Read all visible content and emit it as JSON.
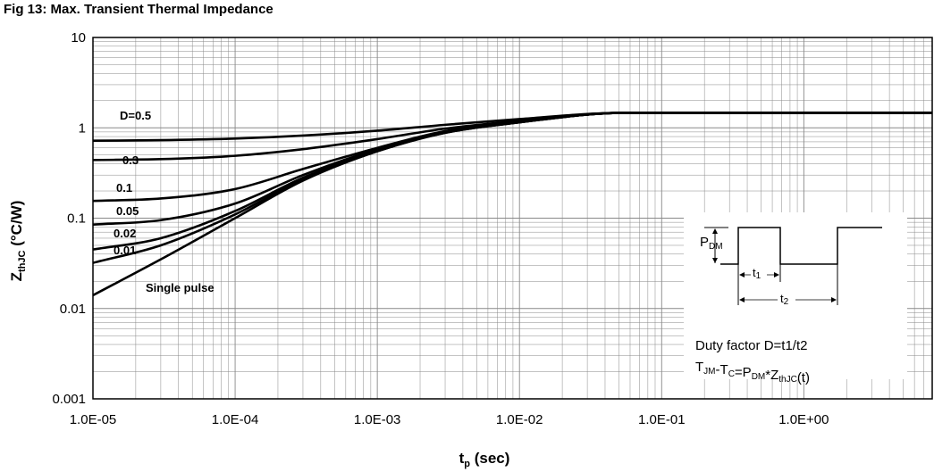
{
  "chart_data": {
    "type": "line",
    "title": "Fig 13: Max. Transient Thermal Impedance",
    "xlabel": {
      "main": "t",
      "sub": "p",
      "rest": " (sec)"
    },
    "ylabel": {
      "main": "Z",
      "sub": "thJC",
      "rest": " (°C/W)"
    },
    "x_scale": "log",
    "y_scale": "log",
    "xlim": [
      1e-05,
      8
    ],
    "ylim": [
      0.001,
      10
    ],
    "x_tick_values": [
      1e-05,
      0.0001,
      0.001,
      0.01,
      0.1,
      1
    ],
    "x_tick_labels": [
      "1.0E-05",
      "1.0E-04",
      "1.0E-03",
      "1.0E-02",
      "1.0E-01",
      "1.0E+00"
    ],
    "y_tick_values": [
      0.001,
      0.01,
      0.1,
      1,
      10
    ],
    "y_tick_labels": [
      "0.001",
      "0.01",
      "0.1",
      "1",
      "10"
    ],
    "grid": true,
    "series": [
      {
        "name": "D=0.5",
        "x": [
          1e-05,
          3e-05,
          0.0001,
          0.0003,
          0.001,
          0.003,
          0.01,
          0.03,
          0.05,
          0.1,
          1,
          8
        ],
        "y": [
          0.72,
          0.73,
          0.76,
          0.82,
          0.93,
          1.08,
          1.25,
          1.42,
          1.46,
          1.46,
          1.46,
          1.46
        ]
      },
      {
        "name": "0.3",
        "x": [
          1e-05,
          3e-05,
          0.0001,
          0.0003,
          0.001,
          0.003,
          0.01,
          0.03,
          0.05,
          0.1,
          1,
          8
        ],
        "y": [
          0.44,
          0.45,
          0.49,
          0.58,
          0.75,
          0.98,
          1.2,
          1.41,
          1.46,
          1.46,
          1.46,
          1.46
        ]
      },
      {
        "name": "0.1",
        "x": [
          1e-05,
          3e-05,
          0.0001,
          0.0003,
          0.001,
          0.003,
          0.01,
          0.03,
          0.05,
          0.1,
          1,
          8
        ],
        "y": [
          0.155,
          0.165,
          0.21,
          0.35,
          0.6,
          0.92,
          1.17,
          1.4,
          1.46,
          1.46,
          1.46,
          1.46
        ]
      },
      {
        "name": "0.05",
        "x": [
          1e-05,
          3e-05,
          0.0001,
          0.0003,
          0.001,
          0.003,
          0.01,
          0.03,
          0.05,
          0.1,
          1,
          8
        ],
        "y": [
          0.085,
          0.095,
          0.145,
          0.3,
          0.58,
          0.9,
          1.16,
          1.4,
          1.46,
          1.46,
          1.46,
          1.46
        ]
      },
      {
        "name": "0.02",
        "x": [
          1e-05,
          3e-05,
          0.0001,
          0.0003,
          0.001,
          0.003,
          0.01,
          0.03,
          0.05,
          0.1,
          1,
          8
        ],
        "y": [
          0.045,
          0.06,
          0.12,
          0.28,
          0.56,
          0.89,
          1.15,
          1.4,
          1.46,
          1.46,
          1.46,
          1.46
        ]
      },
      {
        "name": "0.01",
        "x": [
          1e-05,
          3e-05,
          0.0001,
          0.0003,
          0.001,
          0.003,
          0.01,
          0.03,
          0.05,
          0.1,
          1,
          8
        ],
        "y": [
          0.032,
          0.05,
          0.11,
          0.27,
          0.55,
          0.88,
          1.15,
          1.4,
          1.46,
          1.46,
          1.46,
          1.46
        ]
      },
      {
        "name": "Single pulse",
        "x": [
          1e-05,
          3e-05,
          0.0001,
          0.0003,
          0.001,
          0.003,
          0.01,
          0.03,
          0.05,
          0.1,
          1,
          8
        ],
        "y": [
          0.014,
          0.035,
          0.1,
          0.26,
          0.55,
          0.88,
          1.15,
          1.4,
          1.46,
          1.46,
          1.46,
          1.46
        ]
      }
    ],
    "inset": {
      "pdm": {
        "main": "P",
        "sub": "DM"
      },
      "t1": {
        "main": "t",
        "sub": "1"
      },
      "t2": {
        "main": "t",
        "sub": "2"
      },
      "duty_factor": "Duty factor D=t1/t2",
      "formula": [
        {
          "main": "T",
          "sub": "JM"
        },
        {
          "main": "-T",
          "sub": "C"
        },
        {
          "main": "=P",
          "sub": "DM"
        },
        {
          "main": "*Z",
          "sub": "thJC"
        },
        {
          "main": "(t)",
          "sub": ""
        }
      ]
    }
  }
}
